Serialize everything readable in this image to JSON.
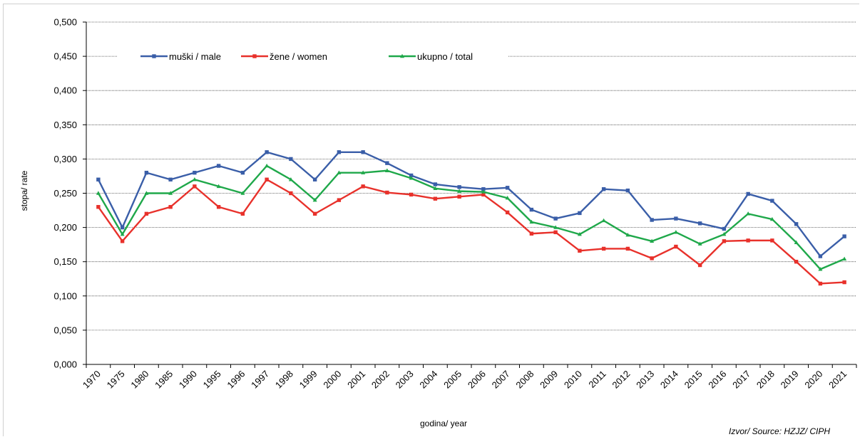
{
  "chart_data": {
    "type": "line",
    "categories": [
      "1970",
      "1975",
      "1980",
      "1985",
      "1990",
      "1995",
      "1996",
      "1997",
      "1998",
      "1999",
      "2000",
      "2001",
      "2002",
      "2003",
      "2004",
      "2005",
      "2006",
      "2007",
      "2008",
      "2009",
      "2010",
      "2011",
      "2012",
      "2013",
      "2014",
      "2015",
      "2016",
      "2017",
      "2018",
      "2019",
      "2020",
      "2021"
    ],
    "series": [
      {
        "name": "muški / male",
        "color": "#3a5ea8",
        "marker": "square",
        "values": [
          0.27,
          0.2,
          0.28,
          0.27,
          0.28,
          0.29,
          0.28,
          0.31,
          0.3,
          0.27,
          0.31,
          0.31,
          0.294,
          0.276,
          0.263,
          0.259,
          0.256,
          0.258,
          0.226,
          0.213,
          0.221,
          0.256,
          0.254,
          0.211,
          0.213,
          0.206,
          0.198,
          0.249,
          0.239,
          0.205,
          0.158,
          0.187
        ]
      },
      {
        "name": "žene / women",
        "color": "#e8312b",
        "marker": "square",
        "values": [
          0.23,
          0.18,
          0.22,
          0.23,
          0.26,
          0.23,
          0.22,
          0.27,
          0.25,
          0.22,
          0.24,
          0.26,
          0.251,
          0.248,
          0.242,
          0.245,
          0.248,
          0.222,
          0.191,
          0.193,
          0.166,
          0.169,
          0.169,
          0.155,
          0.172,
          0.145,
          0.18,
          0.181,
          0.181,
          0.15,
          0.118,
          0.12
        ]
      },
      {
        "name": "ukupno / total",
        "color": "#1fa84a",
        "marker": "triangle",
        "values": [
          0.25,
          0.19,
          0.25,
          0.25,
          0.27,
          0.26,
          0.25,
          0.29,
          0.27,
          0.24,
          0.28,
          0.28,
          0.283,
          0.272,
          0.257,
          0.253,
          0.252,
          0.243,
          0.208,
          0.2,
          0.19,
          0.21,
          0.189,
          0.18,
          0.193,
          0.176,
          0.19,
          0.22,
          0.212,
          0.178,
          0.139,
          0.154
        ]
      }
    ],
    "title": "",
    "xlabel": "godina/ year",
    "ylabel": "stopa/ rate",
    "ylim": [
      0,
      0.5
    ],
    "yticks": [
      "0,000",
      "0,050",
      "0,100",
      "0,150",
      "0,200",
      "0,250",
      "0,300",
      "0,350",
      "0,400",
      "0,450",
      "0,500"
    ],
    "grid": true,
    "legend_position": "top",
    "source_note": "Izvor/ Source: HZJZ/ CIPH"
  }
}
